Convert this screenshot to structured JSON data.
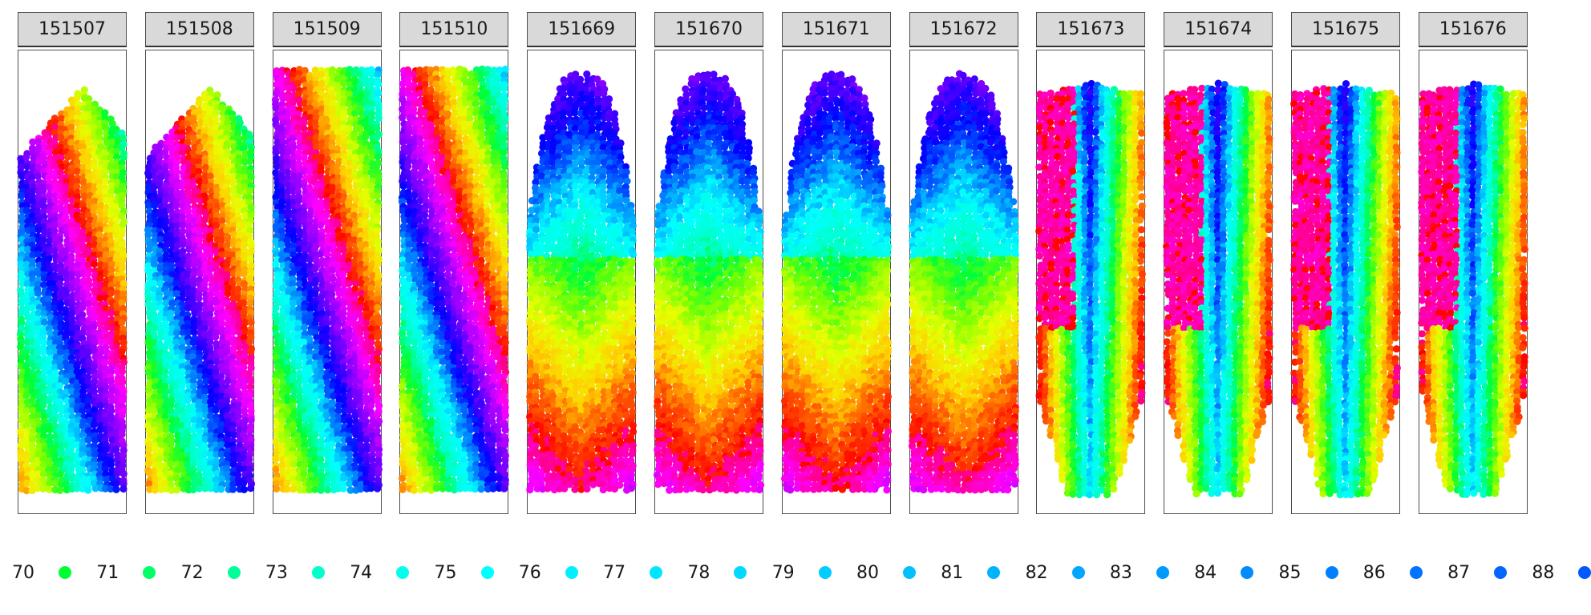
{
  "chart_data": {
    "type": "scatter",
    "title": "",
    "xlabel": "",
    "ylabel": "",
    "facets": [
      "151507",
      "151508",
      "151509",
      "151510",
      "151669",
      "151670",
      "151671",
      "151672",
      "151673",
      "151674",
      "151675",
      "151676"
    ],
    "legend": {
      "placement": "bottom",
      "entries": [
        "70",
        "71",
        "72",
        "73",
        "74",
        "75",
        "76",
        "77",
        "78",
        "79",
        "80",
        "81",
        "82",
        "83",
        "84",
        "85",
        "86",
        "87",
        "88"
      ],
      "colors": [
        "#00ff33",
        "#00ff66",
        "#00ff99",
        "#00ffcc",
        "#00ffee",
        "#00ffff",
        "#00f0ff",
        "#00e6ff",
        "#00d9ff",
        "#00ccff",
        "#00c0ff",
        "#00b3ff",
        "#00a6ff",
        "#0099ff",
        "#008cff",
        "#0080ff",
        "#0073ff",
        "#0066ff",
        "#0059ff"
      ]
    },
    "grid": false
  },
  "colors": {
    "strip_bg": "#d9d9d9",
    "panel_border": "#4d4d4d",
    "spectrum": [
      "#ff0000",
      "#ff5a00",
      "#ffd000",
      "#e6ff00",
      "#80ff00",
      "#00ff33",
      "#00ffcc",
      "#00ffff",
      "#0080ff",
      "#0000ff",
      "#6000ff",
      "#b000ff",
      "#ff00ff",
      "#ff0080"
    ]
  }
}
